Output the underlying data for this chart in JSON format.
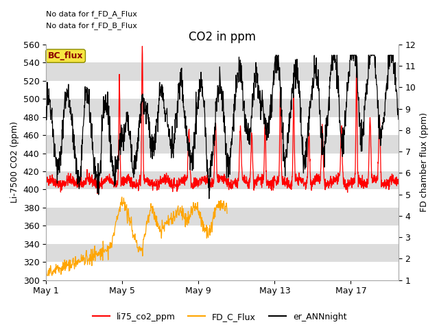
{
  "title": "CO2 in ppm",
  "ylabel_left": "Li-7500 CO2 (ppm)",
  "ylabel_right": "FD chamber flux (ppm)",
  "ylim_left": [
    300,
    560
  ],
  "ylim_right": [
    1.0,
    12.0
  ],
  "yticks_left": [
    300,
    320,
    340,
    360,
    380,
    400,
    420,
    440,
    460,
    480,
    500,
    520,
    540,
    560
  ],
  "yticks_right": [
    1.0,
    2.0,
    3.0,
    4.0,
    5.0,
    6.0,
    7.0,
    8.0,
    9.0,
    10.0,
    11.0,
    12.0
  ],
  "xtick_positions": [
    0,
    4,
    8,
    12,
    16
  ],
  "xtick_labels": [
    "May 1",
    "May 5",
    "May 9",
    "May 13",
    "May 17"
  ],
  "xlim": [
    0,
    18.5
  ],
  "annotation_text1": "No data for f_FD_A_Flux",
  "annotation_text2": "No data for f_FD_B_Flux",
  "bc_flux_label": "BC_flux",
  "legend_labels": [
    "li75_co2_ppm",
    "FD_C_Flux",
    "er_ANNnight"
  ],
  "line_colors": [
    "red",
    "orange",
    "black"
  ],
  "title_fontsize": 12,
  "label_fontsize": 9,
  "tick_fontsize": 9,
  "annot_fontsize": 8,
  "legend_fontsize": 9
}
